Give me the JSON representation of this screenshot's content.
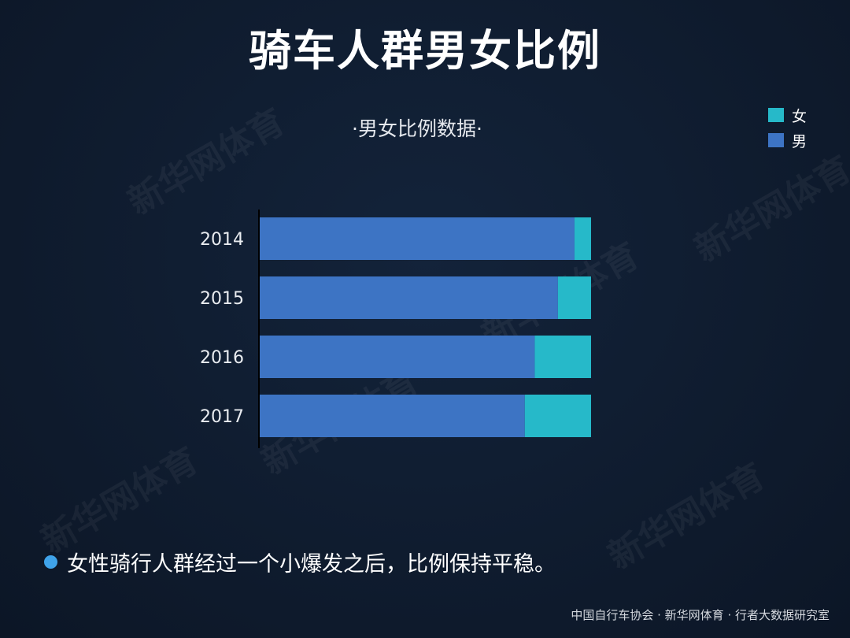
{
  "title": "骑车人群男女比例",
  "note": "女性骑行人群经过一个小爆发之后，比例保持平稳。",
  "source": "中国自行车协会 · 新华网体育 · 行者大数据研究室",
  "watermark": "新华网体育",
  "colors": {
    "male": "#3d74c4",
    "female": "#26b9c9",
    "bullet": "#3fa3ea",
    "background": "#0f1c30"
  },
  "chart_data": {
    "type": "bar",
    "orientation": "horizontal",
    "stacked": true,
    "normalized": true,
    "title": "·男女比例数据·",
    "categories": [
      "2014",
      "2015",
      "2016",
      "2017"
    ],
    "series": [
      {
        "name": "男",
        "values": [
          95,
          90,
          83,
          80
        ]
      },
      {
        "name": "女",
        "values": [
          5,
          10,
          17,
          20
        ]
      }
    ],
    "legend": {
      "position": "top-right",
      "entries": [
        "女",
        "男"
      ]
    },
    "xlim": [
      0,
      100
    ],
    "grid": false
  }
}
